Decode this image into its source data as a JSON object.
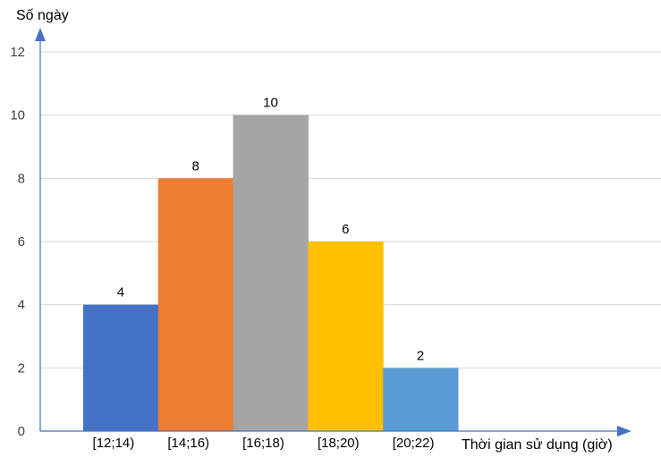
{
  "chart_data": {
    "type": "bar",
    "title": "",
    "ylabel": "Số ngày",
    "xlabel": "Thời gian sử dụng (giờ)",
    "categories": [
      "[12;14)",
      "[14;16)",
      "[16;18)",
      "[18;20)",
      "[20;22)"
    ],
    "values": [
      4,
      8,
      10,
      6,
      2
    ],
    "data_labels": [
      "4",
      "8",
      "10",
      "6",
      "2"
    ],
    "colors": [
      "#4472C4",
      "#ED7D31",
      "#A5A5A5",
      "#FFC000",
      "#5B9BD5"
    ],
    "ylim": [
      0,
      12
    ],
    "yticks": [
      0,
      2,
      4,
      6,
      8,
      10,
      12
    ],
    "grid": true,
    "legend": "none",
    "axis_color": "#4472C4",
    "grid_color": "#D9D9D9"
  }
}
